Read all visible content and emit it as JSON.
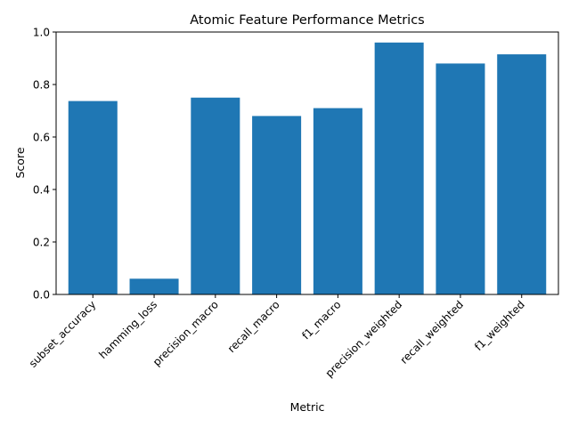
{
  "chart_data": {
    "type": "bar",
    "title": "Atomic Feature Performance Metrics",
    "xlabel": "Metric",
    "ylabel": "Score",
    "categories": [
      "subset_accuracy",
      "hamming_loss",
      "precision_macro",
      "recall_macro",
      "f1_macro",
      "precision_weighted",
      "recall_weighted",
      "f1_weighted"
    ],
    "values": [
      0.737,
      0.06,
      0.75,
      0.68,
      0.71,
      0.96,
      0.88,
      0.915
    ],
    "ylim": [
      0,
      1.0
    ],
    "yticks": [
      "0.0",
      "0.2",
      "0.4",
      "0.6",
      "0.8",
      "1.0"
    ],
    "ytick_values": [
      0,
      0.2,
      0.4,
      0.6,
      0.8,
      1.0
    ],
    "grid": false,
    "bar_color": "#1f77b4"
  }
}
